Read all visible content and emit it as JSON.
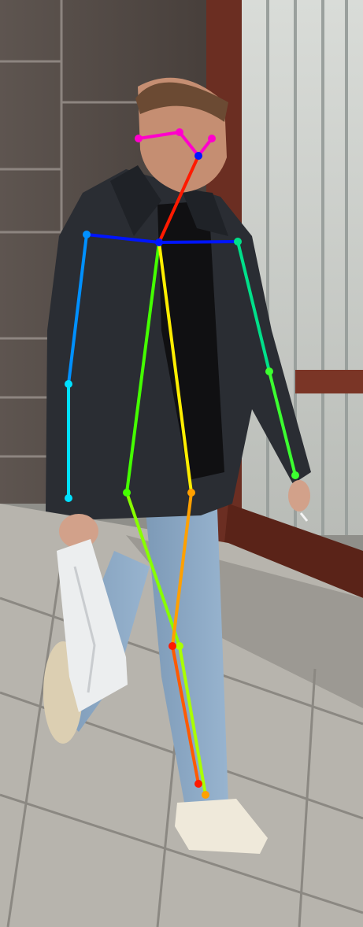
{
  "image": {
    "subject": "person-walking",
    "overlay": "pose-skeleton"
  },
  "skeleton": {
    "colors": {
      "head": "#ff00cc",
      "neck": "#ff1a00",
      "shoulders": "#0015ff",
      "left_upper_arm": "#0090ff",
      "left_forearm": "#00e0ff",
      "right_upper_arm": "#00e08a",
      "right_forearm": "#3cff30",
      "torso_left": "#44ff00",
      "torso_right": "#ffee00",
      "left_thigh": "#88ff00",
      "left_shin": "#aaff00",
      "right_thigh": "#ffa000",
      "right_shin": "#ff5a00"
    }
  }
}
